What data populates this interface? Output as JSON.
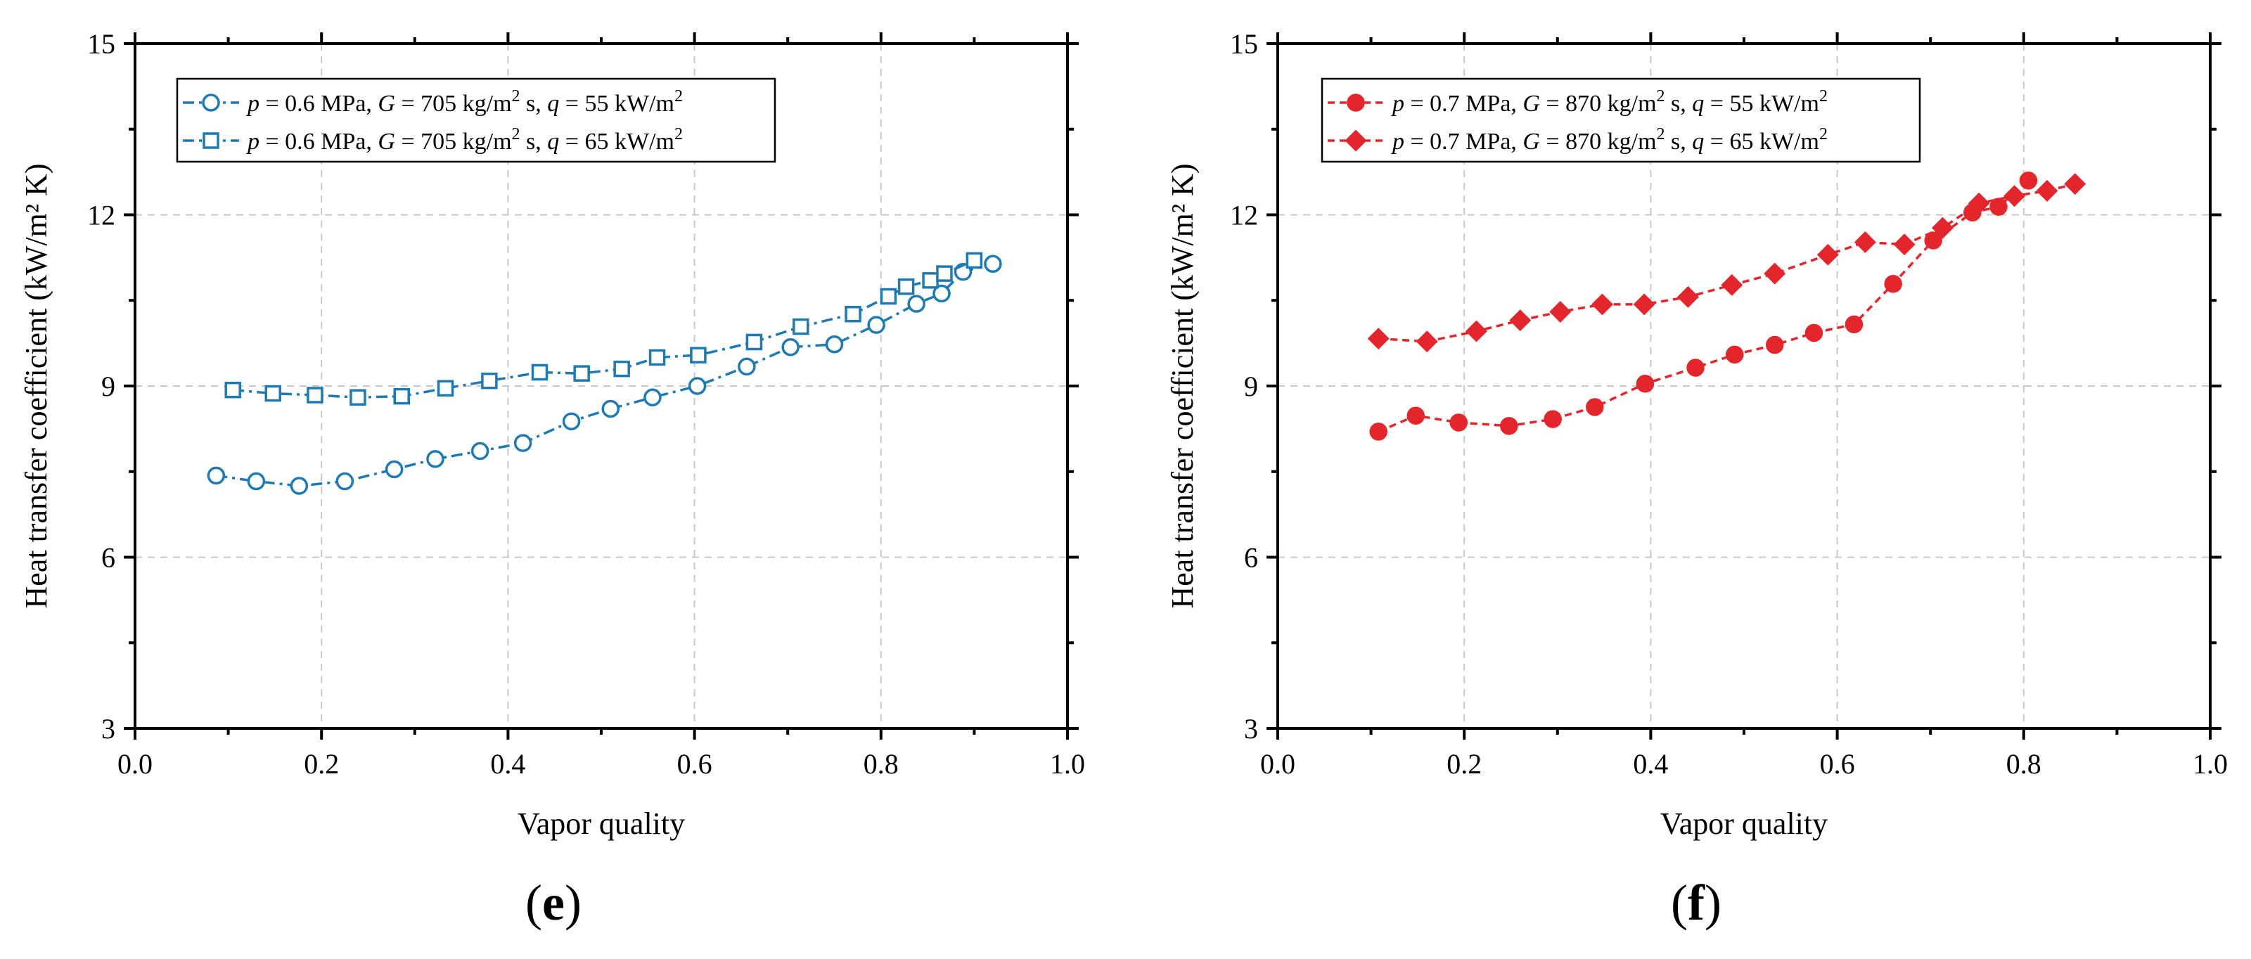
{
  "chart_data": [
    {
      "type": "line",
      "panel_label": "e",
      "xlabel": "Vapor quality",
      "ylabel": "Heat transfer coefficient (kW/m² K)",
      "xlim": [
        0.0,
        1.0
      ],
      "ylim": [
        3,
        15
      ],
      "x_ticks": [
        "0.0",
        "0.2",
        "0.4",
        "0.6",
        "0.8",
        "1.0"
      ],
      "y_ticks": [
        "3",
        "6",
        "9",
        "12",
        "15"
      ],
      "grid": true,
      "legend_position": "top-left",
      "color": "#1f7ab3",
      "series": [
        {
          "name": "p = 0.6 MPa, G = 705 kg/m² s, q = 55 kW/m²",
          "legend": {
            "p_sym": "p",
            "p_val": " = 0.6 MPa, ",
            "g_sym": "G",
            "g_val": " = 705 kg/m",
            "g_exp": "2",
            "s_sep": " s, ",
            "q_sym": "q",
            "q_val": " = 55 kW/m",
            "q_exp": "2"
          },
          "marker": "circle-open",
          "line_style": "dash-dot",
          "x": [
            0.087,
            0.13,
            0.176,
            0.225,
            0.278,
            0.322,
            0.37,
            0.416,
            0.468,
            0.51,
            0.555,
            0.603,
            0.656,
            0.703,
            0.75,
            0.795,
            0.838,
            0.865,
            0.888,
            0.92
          ],
          "y": [
            7.43,
            7.33,
            7.25,
            7.33,
            7.54,
            7.72,
            7.86,
            8.0,
            8.38,
            8.6,
            8.8,
            9.0,
            9.34,
            9.68,
            9.73,
            10.07,
            10.44,
            10.62,
            11.0,
            11.14
          ]
        },
        {
          "name": "p = 0.6 MPa, G = 705 kg/m² s, q = 65 kW/m²",
          "legend": {
            "p_sym": "p",
            "p_val": " = 0.6 MPa, ",
            "g_sym": "G",
            "g_val": " = 705 kg/m",
            "g_exp": "2",
            "s_sep": " s, ",
            "q_sym": "q",
            "q_val": " = 65 kW/m",
            "q_exp": "2"
          },
          "marker": "square-open",
          "line_style": "dash-dot",
          "x": [
            0.105,
            0.148,
            0.193,
            0.239,
            0.286,
            0.333,
            0.38,
            0.434,
            0.479,
            0.522,
            0.56,
            0.604,
            0.664,
            0.714,
            0.77,
            0.808,
            0.827,
            0.853,
            0.868,
            0.9
          ],
          "y": [
            8.93,
            8.87,
            8.84,
            8.8,
            8.82,
            8.96,
            9.09,
            9.24,
            9.22,
            9.3,
            9.5,
            9.54,
            9.77,
            10.04,
            10.26,
            10.57,
            10.74,
            10.85,
            10.97,
            11.2
          ]
        }
      ]
    },
    {
      "type": "line",
      "panel_label": "f",
      "xlabel": "Vapor quality",
      "ylabel": "Heat transfer coefficient (kW/m² K)",
      "xlim": [
        0.0,
        1.0
      ],
      "ylim": [
        3,
        15
      ],
      "x_ticks": [
        "0.0",
        "0.2",
        "0.4",
        "0.6",
        "0.8",
        "1.0"
      ],
      "y_ticks": [
        "3",
        "6",
        "9",
        "12",
        "15"
      ],
      "grid": true,
      "legend_position": "top-left",
      "color": "#e3262c",
      "series": [
        {
          "name": "p = 0.7 MPa, G = 870 kg/m² s, q = 55 kW/m²",
          "legend": {
            "p_sym": "p",
            "p_val": " = 0.7 MPa, ",
            "g_sym": "G",
            "g_val": " = 870 kg/m",
            "g_exp": "2",
            "s_sep": " s, ",
            "q_sym": "q",
            "q_val": " = 55 kW/m",
            "q_exp": "2"
          },
          "marker": "circle-filled",
          "line_style": "dashed",
          "x": [
            0.108,
            0.148,
            0.194,
            0.248,
            0.295,
            0.34,
            0.394,
            0.448,
            0.49,
            0.533,
            0.575,
            0.618,
            0.66,
            0.703,
            0.745,
            0.773,
            0.805
          ],
          "y": [
            8.2,
            8.48,
            8.36,
            8.3,
            8.42,
            8.63,
            9.04,
            9.32,
            9.55,
            9.72,
            9.93,
            10.08,
            10.79,
            11.55,
            12.04,
            12.14,
            12.6
          ]
        },
        {
          "name": "p = 0.7 MPa, G = 870 kg/m² s, q = 65 kW/m²",
          "legend": {
            "p_sym": "p",
            "p_val": " = 0.7 MPa, ",
            "g_sym": "G",
            "g_val": " = 870 kg/m",
            "g_exp": "2",
            "s_sep": " s, ",
            "q_sym": "q",
            "q_val": " = 65 kW/m",
            "q_exp": "2"
          },
          "marker": "diamond-filled",
          "line_style": "dashed",
          "x": [
            0.108,
            0.16,
            0.213,
            0.26,
            0.303,
            0.348,
            0.393,
            0.44,
            0.487,
            0.533,
            0.59,
            0.63,
            0.672,
            0.713,
            0.752,
            0.79,
            0.825,
            0.855
          ],
          "y": [
            9.83,
            9.78,
            9.96,
            10.15,
            10.3,
            10.43,
            10.43,
            10.56,
            10.77,
            10.97,
            11.3,
            11.52,
            11.48,
            11.77,
            12.2,
            12.33,
            12.42,
            12.54
          ]
        }
      ]
    }
  ]
}
